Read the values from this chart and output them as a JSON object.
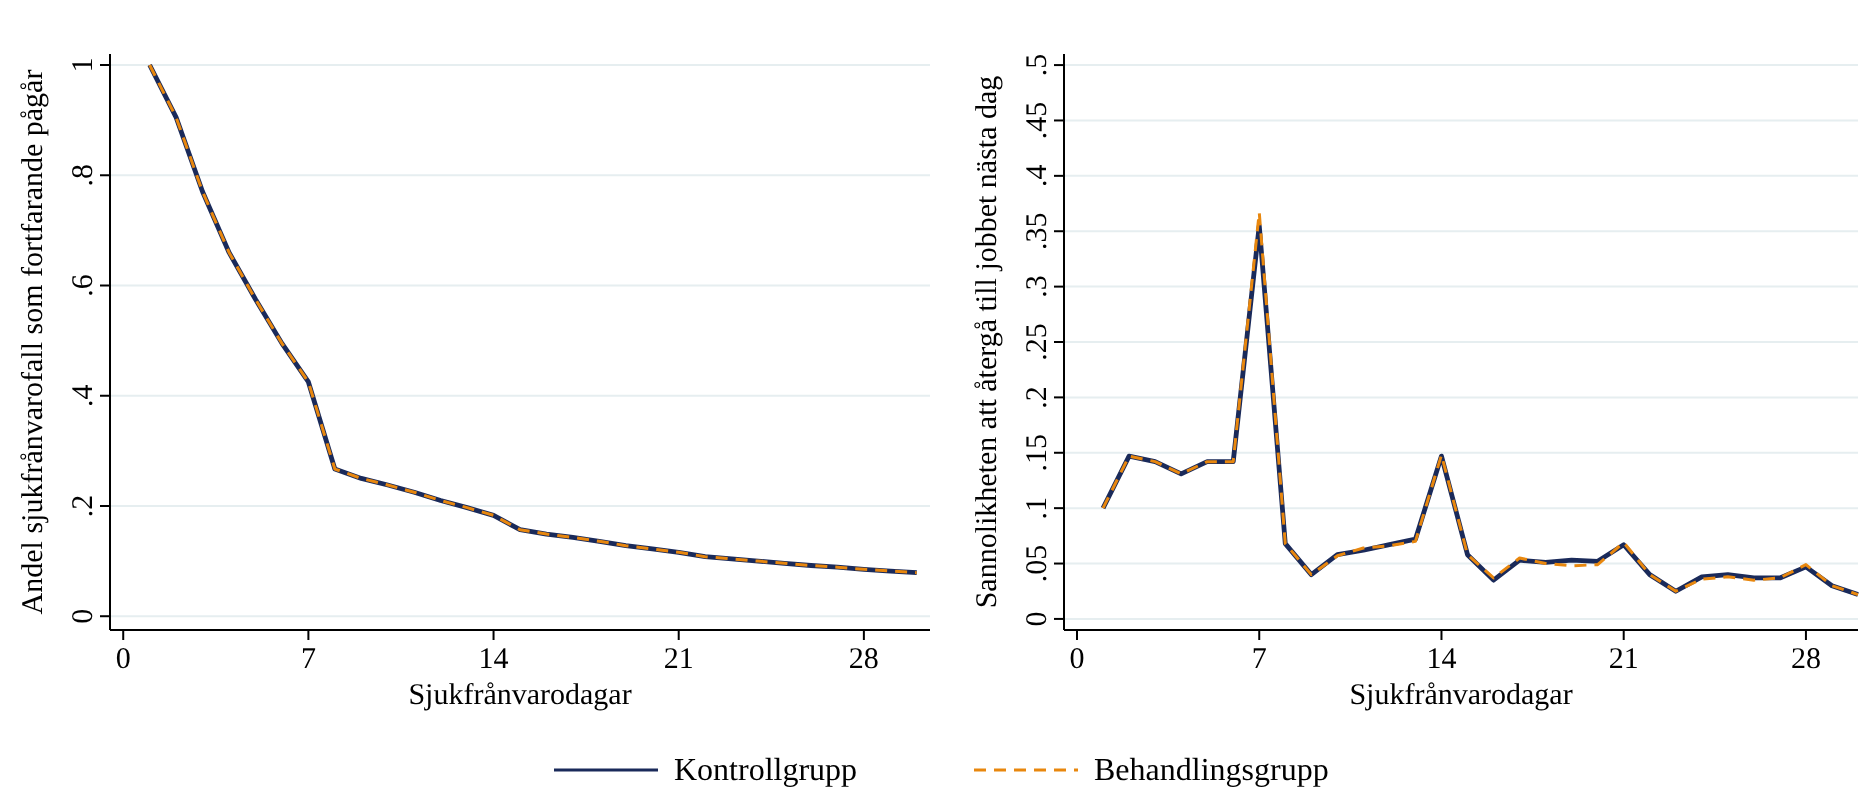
{
  "chart_data": [
    {
      "type": "line",
      "xlabel": "Sjukfrånvarodagar",
      "ylabel": "Andel sjukfrånvarofall som fortfarande pågår",
      "x": [
        1,
        2,
        3,
        4,
        5,
        6,
        7,
        8,
        9,
        10,
        11,
        12,
        13,
        14,
        15,
        16,
        17,
        18,
        19,
        20,
        21,
        22,
        23,
        24,
        25,
        26,
        27,
        28,
        29,
        30
      ],
      "xlim": [
        -0.5,
        30.5
      ],
      "xticks": [
        0,
        7,
        14,
        21,
        28
      ],
      "ylim": [
        -0.025,
        1.02
      ],
      "yticks": [
        {
          "value": 0,
          "label": "0"
        },
        {
          "value": 0.2,
          "label": ".2"
        },
        {
          "value": 0.4,
          "label": ".4"
        },
        {
          "value": 0.6,
          "label": ".6"
        },
        {
          "value": 0.8,
          "label": ".8"
        },
        {
          "value": 1,
          "label": "1"
        }
      ],
      "grid": "y",
      "legend": "bottom",
      "series": [
        {
          "name": "Kontrollgrupp",
          "color": "#1a2a5a",
          "line_style": "solid",
          "values": [
            1,
            0.905,
            0.77,
            0.66,
            0.575,
            0.495,
            0.425,
            0.267,
            0.25,
            0.238,
            0.225,
            0.21,
            0.197,
            0.183,
            0.157,
            0.149,
            0.143,
            0.136,
            0.128,
            0.122,
            0.116,
            0.108,
            0.104,
            0.1,
            0.096,
            0.092,
            0.089,
            0.085,
            0.082,
            0.079
          ]
        },
        {
          "name": "Behandlingsgrupp",
          "color": "#e8870e",
          "line_style": "dashed",
          "values": [
            1,
            0.905,
            0.77,
            0.66,
            0.575,
            0.495,
            0.425,
            0.267,
            0.25,
            0.238,
            0.225,
            0.21,
            0.197,
            0.183,
            0.157,
            0.149,
            0.143,
            0.136,
            0.128,
            0.122,
            0.116,
            0.108,
            0.104,
            0.1,
            0.096,
            0.092,
            0.089,
            0.085,
            0.082,
            0.079
          ]
        }
      ]
    },
    {
      "type": "line",
      "xlabel": "Sjukfrånvarodagar",
      "ylabel": "Sannolikheten att återgå till jobbet nästa dag",
      "x": [
        1,
        2,
        3,
        4,
        5,
        6,
        7,
        8,
        9,
        10,
        11,
        12,
        13,
        14,
        15,
        16,
        17,
        18,
        19,
        20,
        21,
        22,
        23,
        24,
        25,
        26,
        27,
        28,
        29,
        30
      ],
      "xlim": [
        -0.5,
        30
      ],
      "xticks": [
        0,
        7,
        14,
        21,
        28
      ],
      "ylim": [
        -0.01,
        0.51
      ],
      "yticks": [
        {
          "value": 0,
          "label": "0"
        },
        {
          "value": 0.05,
          "label": ".05"
        },
        {
          "value": 0.1,
          "label": ".1"
        },
        {
          "value": 0.15,
          "label": ".15"
        },
        {
          "value": 0.2,
          "label": ".2"
        },
        {
          "value": 0.25,
          "label": ".25"
        },
        {
          "value": 0.3,
          "label": ".3"
        },
        {
          "value": 0.35,
          "label": ".35"
        },
        {
          "value": 0.4,
          "label": ".4"
        },
        {
          "value": 0.45,
          "label": ".45"
        },
        {
          "value": 0.5,
          "label": ".5"
        }
      ],
      "grid": "y",
      "series": [
        {
          "color": "#1a2a5a",
          "line_style": "solid",
          "values": [
            0.1,
            0.147,
            0.142,
            0.131,
            0.142,
            0.142,
            0.355,
            0.068,
            0.04,
            0.058,
            0.062,
            0.067,
            0.072,
            0.147,
            0.058,
            0.035,
            0.053,
            0.051,
            0.053,
            0.052,
            0.067,
            0.04,
            0.025,
            0.038,
            0.04,
            0.037,
            0.037,
            0.047,
            0.03,
            0.022
          ]
        },
        {
          "color": "#e8870e",
          "line_style": "dashed",
          "values": [
            0.1,
            0.147,
            0.142,
            0.131,
            0.142,
            0.142,
            0.367,
            0.068,
            0.04,
            0.057,
            0.064,
            0.066,
            0.07,
            0.148,
            0.058,
            0.037,
            0.055,
            0.05,
            0.048,
            0.049,
            0.069,
            0.04,
            0.025,
            0.036,
            0.038,
            0.035,
            0.037,
            0.049,
            0.03,
            0.022
          ]
        }
      ]
    }
  ]
}
